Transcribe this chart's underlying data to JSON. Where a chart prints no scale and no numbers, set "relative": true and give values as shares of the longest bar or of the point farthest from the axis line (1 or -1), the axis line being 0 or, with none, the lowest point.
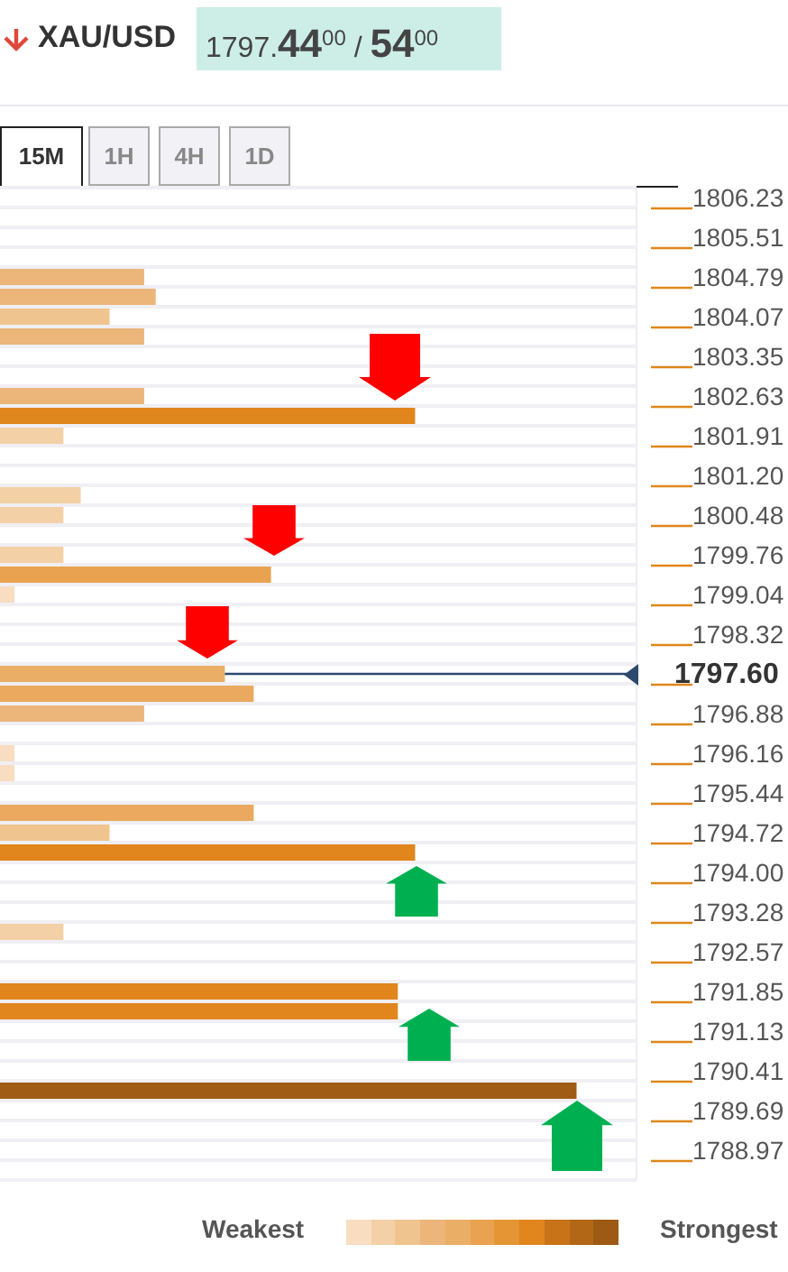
{
  "chart_data": {
    "type": "bar",
    "orientation": "horizontal",
    "relative": true,
    "title": "XAU/USD",
    "subtitle": "1797.44$^{00}$ / 54$^{00}$",
    "annotations": [
      "15M",
      "1H",
      "4H",
      "1D",
      "Weakest",
      "Strongest"
    ],
    "categories": [
      "1806.23",
      null,
      "1805.51",
      null,
      "1804.79",
      null,
      "1804.07",
      null,
      "1803.35",
      null,
      "1802.63",
      null,
      "1801.91",
      null,
      "1801.20",
      null,
      "1800.48",
      null,
      "1799.76",
      null,
      "1799.04",
      null,
      "1798.32",
      null,
      "1797.60",
      null,
      "1796.88",
      null,
      "1796.16",
      null,
      "1795.44",
      null,
      "1794.72",
      null,
      "1794.00",
      null,
      "1793.28",
      null,
      "1792.57",
      null,
      "1791.85",
      null,
      "1791.13",
      null,
      "1790.41",
      null,
      "1789.69",
      null,
      "1788.97",
      null
    ],
    "values": [
      null,
      null,
      null,
      null,
      0.25,
      0.27,
      0.19,
      0.25,
      null,
      null,
      0.25,
      0.72,
      0.11,
      null,
      null,
      0.14,
      0.11,
      null,
      0.11,
      0.47,
      0.025,
      null,
      null,
      null,
      0.39,
      0.44,
      0.25,
      null,
      0.025,
      0.025,
      null,
      0.44,
      0.19,
      0.72,
      null,
      null,
      null,
      0.11,
      null,
      null,
      0.69,
      0.69,
      null,
      null,
      null,
      1,
      null,
      null,
      null,
      null
    ],
    "colors": [
      "#ecb57a",
      "#ecb57a",
      "#ecb57a",
      "#ecb57a",
      "#ecb57a",
      "#ecb57a",
      "#f0c48f",
      "#ecb57a",
      "#ecb57a",
      "#ecb57a",
      "#ecb57a",
      "#e0861c",
      "#f4d0a6",
      "#ecb57a",
      "#ecb57a",
      "#f4d0a6",
      "#f4d0a6",
      "#ecb57a",
      "#f4d0a6",
      "#e9a24f",
      "#f8ddc0",
      "#ecb57a",
      "#ecb57a",
      "#ecb57a",
      "#eaae67",
      "#eaa95f",
      "#ecb57a",
      "#ecb57a",
      "#f8ddc0",
      "#f8ddc0",
      "#ecb57a",
      "#eaa95f",
      "#f0c48f",
      "#e0861c",
      "#ecb57a",
      "#ecb57a",
      "#ecb57a",
      "#f4d0a6",
      "#ecb57a",
      "#ecb57a",
      "#e0861c",
      "#e0861c",
      "#ecb57a",
      "#ecb57a",
      "#ecb57a",
      "#a05c14",
      "#ecb57a",
      "#ecb57a",
      "#ecb57a",
      "#ecb57a"
    ],
    "ref_lines": [
      {
        "axis": "y",
        "value": "1797.60",
        "color": "#2c4a6e"
      }
    ],
    "grid": true
  }
}
